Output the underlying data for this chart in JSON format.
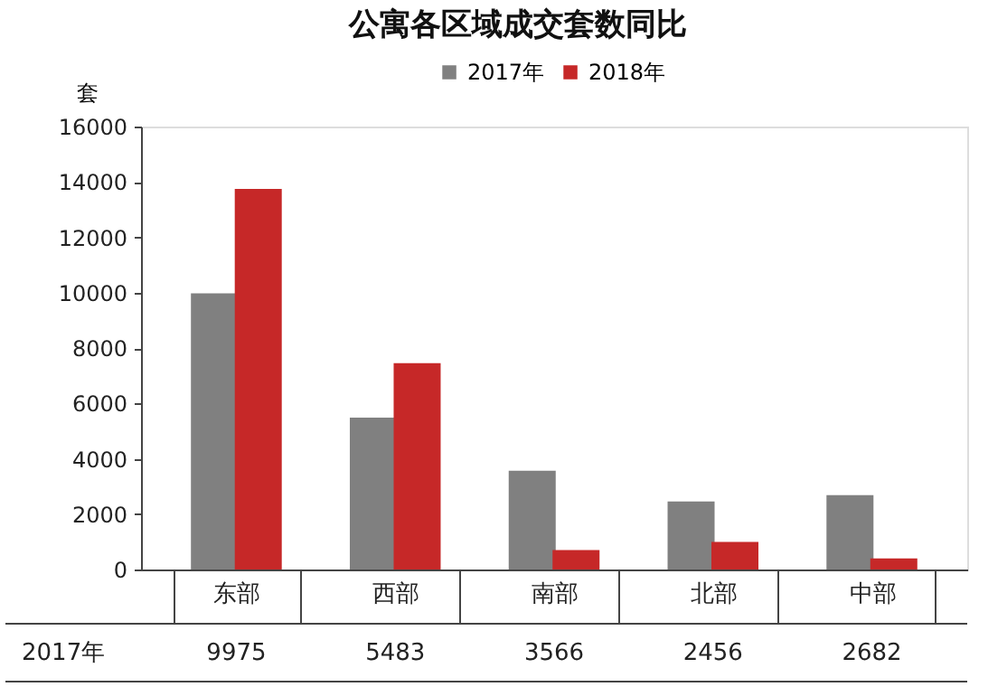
{
  "chart_data": {
    "type": "bar",
    "title": "公寓各区域成交套数同比",
    "ylabel": "套",
    "categories": [
      "东部",
      "西部",
      "南部",
      "北部",
      "中部"
    ],
    "series": [
      {
        "name": "2017年",
        "color": "#808080",
        "values": [
          9975,
          5483,
          3566,
          2456,
          2682
        ],
        "value_labels": [
          "9975",
          "5483",
          "3566",
          "2456",
          "2682"
        ]
      },
      {
        "name": "2018年",
        "color": "#c62828",
        "values": [
          13750,
          7450,
          700,
          1000,
          400
        ]
      }
    ],
    "ylim": [
      0,
      16000
    ],
    "yticks": [
      0,
      2000,
      4000,
      6000,
      8000,
      10000,
      12000,
      14000,
      16000
    ],
    "grid": false,
    "legend": "top"
  }
}
